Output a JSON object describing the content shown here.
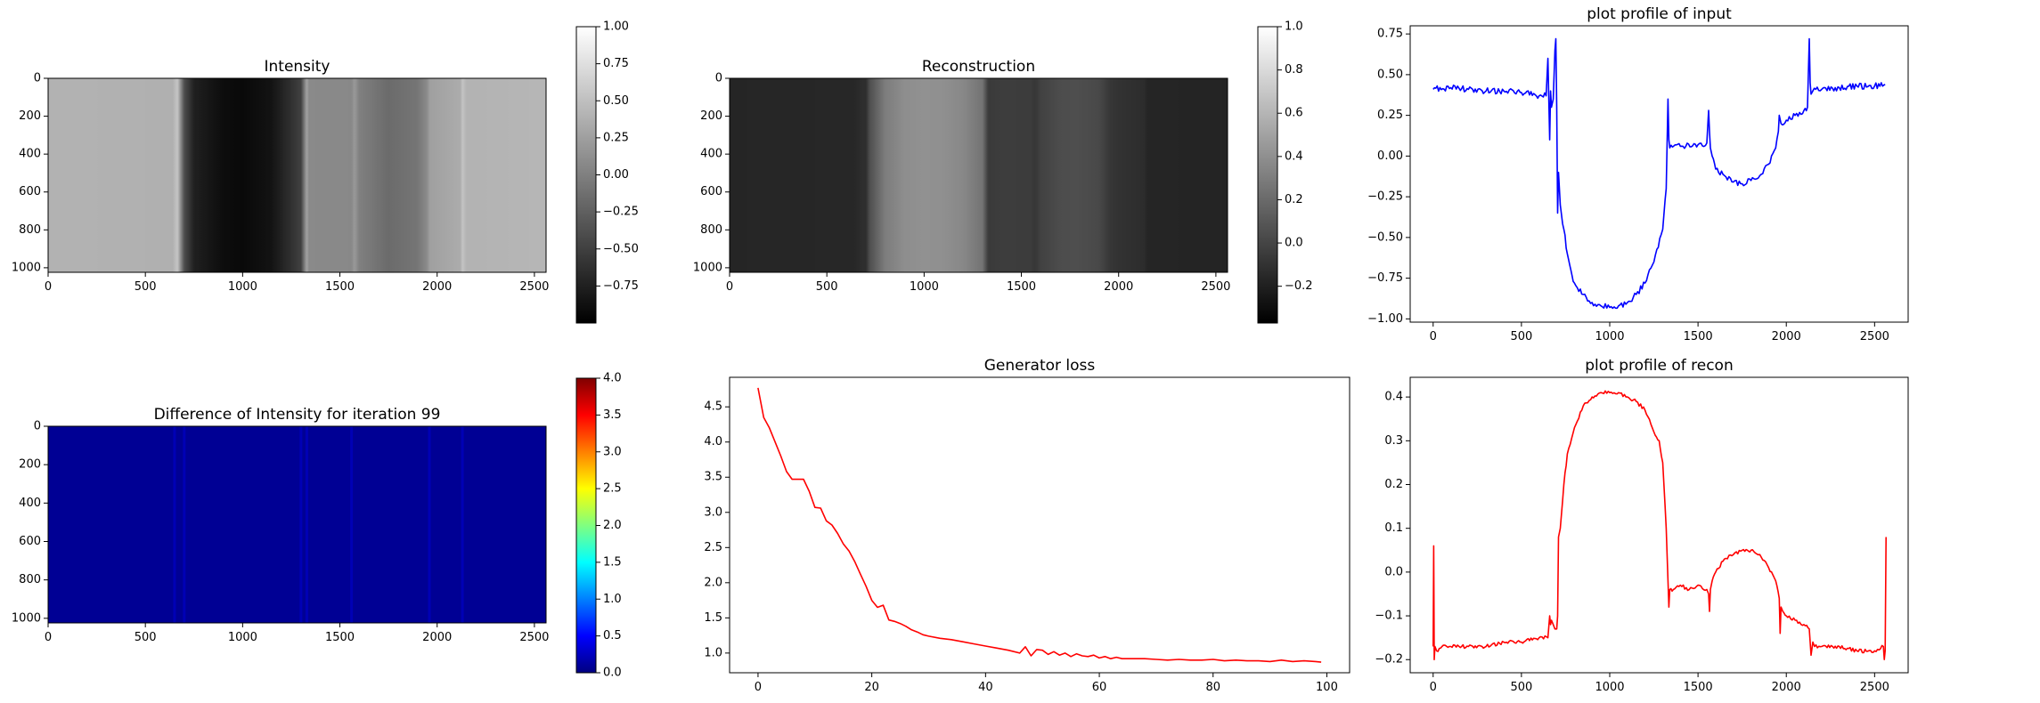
{
  "chart_data": [
    {
      "id": "intensity",
      "type": "heatmap",
      "title": "Intensity",
      "colormap": "gray",
      "xlim": [
        0,
        2560
      ],
      "ylim": [
        1024,
        0
      ],
      "xticks": [
        0,
        500,
        1000,
        1500,
        2000,
        2500
      ],
      "yticks": [
        0,
        200,
        400,
        600,
        800,
        1000
      ],
      "clim": [
        -1.0,
        1.0
      ],
      "colorbar_ticks": [
        {
          "value": 1.0,
          "label": "1.00"
        },
        {
          "value": 0.75,
          "label": "0.75"
        },
        {
          "value": 0.5,
          "label": "0.50"
        },
        {
          "value": 0.25,
          "label": "0.25"
        },
        {
          "value": 0.0,
          "label": "0.00"
        },
        {
          "value": -0.25,
          "label": "−0.25"
        },
        {
          "value": -0.5,
          "label": "−0.50"
        },
        {
          "value": -0.75,
          "label": "−0.75"
        }
      ],
      "column_profile": [
        [
          0,
          0.4
        ],
        [
          640,
          0.38
        ],
        [
          665,
          0.55
        ],
        [
          700,
          -0.4
        ],
        [
          750,
          -0.75
        ],
        [
          900,
          -0.9
        ],
        [
          1000,
          -0.93
        ],
        [
          1150,
          -0.85
        ],
        [
          1300,
          -0.5
        ],
        [
          1330,
          0.3
        ],
        [
          1340,
          0.08
        ],
        [
          1560,
          0.07
        ],
        [
          1575,
          0.2
        ],
        [
          1600,
          0.0
        ],
        [
          1750,
          -0.16
        ],
        [
          1900,
          -0.08
        ],
        [
          1950,
          0.1
        ],
        [
          1960,
          0.25
        ],
        [
          2120,
          0.35
        ],
        [
          2130,
          0.55
        ],
        [
          2150,
          0.4
        ],
        [
          2560,
          0.43
        ]
      ]
    },
    {
      "id": "reconstruction",
      "type": "heatmap",
      "title": "Reconstruction",
      "colormap": "gray",
      "xlim": [
        0,
        2560
      ],
      "ylim": [
        1024,
        0
      ],
      "xticks": [
        0,
        500,
        1000,
        1500,
        2000,
        2500
      ],
      "yticks": [
        0,
        200,
        400,
        600,
        800,
        1000
      ],
      "clim": [
        -0.37,
        1.0
      ],
      "colorbar_ticks": [
        {
          "value": 1.0,
          "label": "1.0"
        },
        {
          "value": 0.8,
          "label": "0.8"
        },
        {
          "value": 0.6,
          "label": "0.6"
        },
        {
          "value": 0.4,
          "label": "0.4"
        },
        {
          "value": 0.2,
          "label": "0.2"
        },
        {
          "value": 0.0,
          "label": "0.0"
        },
        {
          "value": -0.2,
          "label": "−0.2"
        }
      ],
      "column_profile": [
        [
          0,
          -0.17
        ],
        [
          640,
          -0.16
        ],
        [
          690,
          -0.12
        ],
        [
          700,
          -0.13
        ],
        [
          720,
          0.05
        ],
        [
          800,
          0.3
        ],
        [
          900,
          0.39
        ],
        [
          1000,
          0.41
        ],
        [
          1100,
          0.4
        ],
        [
          1200,
          0.36
        ],
        [
          1300,
          0.25
        ],
        [
          1330,
          -0.06
        ],
        [
          1400,
          -0.04
        ],
        [
          1550,
          -0.05
        ],
        [
          1570,
          -0.08
        ],
        [
          1600,
          -0.02
        ],
        [
          1700,
          0.04
        ],
        [
          1780,
          0.05
        ],
        [
          1900,
          0.02
        ],
        [
          1960,
          -0.08
        ],
        [
          2000,
          -0.1
        ],
        [
          2130,
          -0.13
        ],
        [
          2150,
          -0.17
        ],
        [
          2560,
          -0.18
        ]
      ]
    },
    {
      "id": "profile-input",
      "type": "line",
      "title": "plot profile of input",
      "xlim": [
        -130,
        2690
      ],
      "ylim": [
        -1.02,
        0.8
      ],
      "xticks": [
        0,
        500,
        1000,
        1500,
        2000,
        2500
      ],
      "yticks": [
        {
          "value": 0.75,
          "label": "0.75"
        },
        {
          "value": 0.5,
          "label": "0.50"
        },
        {
          "value": 0.25,
          "label": "0.25"
        },
        {
          "value": 0.0,
          "label": "0.00"
        },
        {
          "value": -0.25,
          "label": "−0.25"
        },
        {
          "value": -0.5,
          "label": "−0.50"
        },
        {
          "value": -0.75,
          "label": "−0.75"
        },
        {
          "value": -1.0,
          "label": "−1.00"
        }
      ],
      "series": [
        {
          "name": "input",
          "color": "#0000ff",
          "x": [
            0,
            100,
            200,
            300,
            400,
            500,
            600,
            640,
            650,
            655,
            660,
            665,
            670,
            680,
            690,
            695,
            700,
            705,
            710,
            720,
            740,
            760,
            780,
            800,
            850,
            900,
            950,
            1000,
            1050,
            1100,
            1150,
            1200,
            1250,
            1300,
            1320,
            1330,
            1335,
            1340,
            1400,
            1500,
            1550,
            1560,
            1565,
            1570,
            1580,
            1600,
            1650,
            1700,
            1750,
            1800,
            1850,
            1900,
            1940,
            1955,
            1960,
            1970,
            2000,
            2050,
            2100,
            2120,
            2130,
            2135,
            2140,
            2150,
            2200,
            2300,
            2400,
            2500,
            2560
          ],
          "y": [
            0.41,
            0.42,
            0.41,
            0.4,
            0.4,
            0.39,
            0.37,
            0.37,
            0.6,
            0.35,
            0.1,
            0.4,
            0.3,
            0.35,
            0.65,
            0.72,
            0.3,
            -0.35,
            -0.1,
            -0.3,
            -0.45,
            -0.6,
            -0.7,
            -0.78,
            -0.85,
            -0.9,
            -0.92,
            -0.93,
            -0.92,
            -0.9,
            -0.85,
            -0.78,
            -0.65,
            -0.45,
            -0.2,
            0.35,
            0.1,
            0.05,
            0.06,
            0.07,
            0.08,
            0.28,
            0.15,
            0.05,
            0.0,
            -0.08,
            -0.12,
            -0.16,
            -0.17,
            -0.15,
            -0.12,
            -0.05,
            0.05,
            0.15,
            0.25,
            0.2,
            0.22,
            0.25,
            0.28,
            0.3,
            0.72,
            0.45,
            0.38,
            0.4,
            0.41,
            0.42,
            0.43,
            0.43,
            0.44
          ]
        }
      ]
    },
    {
      "id": "difference",
      "type": "heatmap",
      "title": "Difference of Intensity for iteration 99",
      "colormap": "jet",
      "xlim": [
        0,
        2560
      ],
      "ylim": [
        1024,
        0
      ],
      "xticks": [
        0,
        500,
        1000,
        1500,
        2000,
        2500
      ],
      "yticks": [
        0,
        200,
        400,
        600,
        800,
        1000
      ],
      "clim": [
        0.0,
        4.0
      ],
      "colorbar_ticks": [
        {
          "value": 4.0,
          "label": "4.0"
        },
        {
          "value": 3.5,
          "label": "3.5"
        },
        {
          "value": 3.0,
          "label": "3.0"
        },
        {
          "value": 2.5,
          "label": "2.5"
        },
        {
          "value": 2.0,
          "label": "2.0"
        },
        {
          "value": 1.5,
          "label": "1.5"
        },
        {
          "value": 1.0,
          "label": "1.0"
        },
        {
          "value": 0.5,
          "label": "0.5"
        },
        {
          "value": 0.0,
          "label": "0.0"
        }
      ],
      "faint_columns": [
        650,
        700,
        1300,
        1330,
        1560,
        1960,
        2130
      ]
    },
    {
      "id": "generator-loss",
      "type": "line",
      "title": "Generator loss",
      "xlim": [
        -5,
        104
      ],
      "ylim": [
        0.72,
        4.92
      ],
      "xticks": [
        0,
        20,
        40,
        60,
        80,
        100
      ],
      "yticks": [
        {
          "value": 1.0,
          "label": "1.0"
        },
        {
          "value": 1.5,
          "label": "1.5"
        },
        {
          "value": 2.0,
          "label": "2.0"
        },
        {
          "value": 2.5,
          "label": "2.5"
        },
        {
          "value": 3.0,
          "label": "3.0"
        },
        {
          "value": 3.5,
          "label": "3.5"
        },
        {
          "value": 4.0,
          "label": "4.0"
        },
        {
          "value": 4.5,
          "label": "4.5"
        }
      ],
      "series": [
        {
          "name": "loss",
          "color": "#ff0000",
          "x": [
            0,
            1,
            2,
            3,
            4,
            5,
            6,
            7,
            8,
            9,
            10,
            11,
            12,
            13,
            14,
            15,
            16,
            17,
            18,
            19,
            20,
            21,
            22,
            23,
            24,
            25,
            26,
            27,
            28,
            29,
            30,
            32,
            34,
            36,
            38,
            40,
            42,
            44,
            46,
            47,
            48,
            49,
            50,
            51,
            52,
            53,
            54,
            55,
            56,
            57,
            58,
            59,
            60,
            61,
            62,
            63,
            64,
            66,
            68,
            70,
            72,
            74,
            76,
            78,
            80,
            82,
            84,
            86,
            88,
            90,
            92,
            94,
            96,
            98,
            99
          ],
          "y": [
            4.77,
            4.35,
            4.2,
            4.0,
            3.8,
            3.58,
            3.47,
            3.47,
            3.47,
            3.3,
            3.07,
            3.06,
            2.88,
            2.82,
            2.7,
            2.55,
            2.45,
            2.3,
            2.12,
            1.95,
            1.75,
            1.65,
            1.68,
            1.47,
            1.45,
            1.42,
            1.38,
            1.33,
            1.3,
            1.26,
            1.24,
            1.21,
            1.19,
            1.16,
            1.13,
            1.1,
            1.07,
            1.04,
            1.0,
            1.09,
            0.96,
            1.05,
            1.04,
            0.98,
            1.02,
            0.97,
            1.0,
            0.95,
            0.99,
            0.96,
            0.95,
            0.97,
            0.93,
            0.95,
            0.92,
            0.94,
            0.92,
            0.92,
            0.92,
            0.91,
            0.9,
            0.91,
            0.9,
            0.9,
            0.91,
            0.89,
            0.9,
            0.89,
            0.89,
            0.88,
            0.9,
            0.88,
            0.89,
            0.88,
            0.87
          ]
        }
      ]
    },
    {
      "id": "profile-recon",
      "type": "line",
      "title": "plot profile of recon",
      "xlim": [
        -130,
        2690
      ],
      "ylim": [
        -0.23,
        0.445
      ],
      "xticks": [
        0,
        500,
        1000,
        1500,
        2000,
        2500
      ],
      "yticks": [
        {
          "value": 0.4,
          "label": "0.4"
        },
        {
          "value": 0.3,
          "label": "0.3"
        },
        {
          "value": 0.2,
          "label": "0.2"
        },
        {
          "value": 0.1,
          "label": "0.1"
        },
        {
          "value": 0.0,
          "label": "0.0"
        },
        {
          "value": -0.1,
          "label": "−0.1"
        },
        {
          "value": -0.2,
          "label": "−0.2"
        }
      ],
      "series": [
        {
          "name": "recon",
          "color": "#ff0000",
          "x": [
            0,
            3,
            6,
            10,
            20,
            50,
            100,
            200,
            300,
            400,
            500,
            600,
            650,
            660,
            665,
            670,
            680,
            690,
            700,
            705,
            710,
            720,
            740,
            760,
            800,
            850,
            900,
            950,
            1000,
            1050,
            1100,
            1150,
            1200,
            1250,
            1280,
            1300,
            1320,
            1330,
            1335,
            1340,
            1360,
            1400,
            1450,
            1500,
            1550,
            1560,
            1565,
            1570,
            1580,
            1600,
            1650,
            1700,
            1750,
            1780,
            1800,
            1850,
            1900,
            1940,
            1960,
            1965,
            1970,
            1980,
            2000,
            2050,
            2100,
            2130,
            2140,
            2150,
            2160,
            2200,
            2300,
            2400,
            2500,
            2550,
            2555,
            2560,
            2565
          ],
          "y": [
            -0.17,
            0.06,
            -0.2,
            -0.17,
            -0.18,
            -0.17,
            -0.17,
            -0.17,
            -0.17,
            -0.16,
            -0.16,
            -0.15,
            -0.15,
            -0.1,
            -0.12,
            -0.11,
            -0.12,
            -0.13,
            -0.13,
            -0.1,
            0.08,
            0.1,
            0.2,
            0.27,
            0.33,
            0.38,
            0.4,
            0.41,
            0.41,
            0.41,
            0.4,
            0.39,
            0.37,
            0.32,
            0.3,
            0.25,
            0.1,
            -0.02,
            -0.08,
            -0.04,
            -0.04,
            -0.03,
            -0.04,
            -0.03,
            -0.04,
            -0.05,
            -0.09,
            -0.04,
            -0.02,
            0.0,
            0.03,
            0.04,
            0.05,
            0.05,
            0.05,
            0.04,
            0.01,
            -0.02,
            -0.06,
            -0.14,
            -0.08,
            -0.09,
            -0.1,
            -0.11,
            -0.12,
            -0.13,
            -0.19,
            -0.16,
            -0.17,
            -0.17,
            -0.17,
            -0.18,
            -0.18,
            -0.17,
            -0.2,
            -0.18,
            0.08
          ]
        }
      ]
    }
  ]
}
